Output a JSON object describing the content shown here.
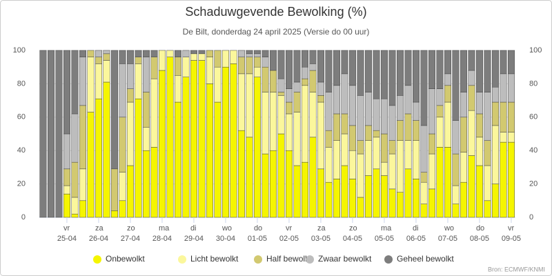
{
  "chart_data": {
    "type": "stacked_bar",
    "title": "Schaduwgevende Bewolking (%)",
    "subtitle": "De Bilt, donderdag 24 april 2025 (Versie do 00 uur)",
    "source": "Bron: ECMWF/KNMI",
    "categories": [
      null,
      null,
      null,
      "25-04",
      null,
      null,
      null,
      "26-04",
      null,
      null,
      null,
      "27-04",
      null,
      null,
      null,
      "28-04",
      null,
      null,
      null,
      "29-04",
      null,
      null,
      null,
      "30-04",
      null,
      null,
      null,
      "01-05",
      null,
      null,
      null,
      "02-05",
      null,
      null,
      null,
      "03-05",
      null,
      null,
      null,
      "04-05",
      null,
      null,
      null,
      "05-05",
      null,
      null,
      null,
      "06-05",
      null,
      null,
      null,
      "07-05",
      null,
      null,
      null,
      "08-05",
      null,
      null,
      null,
      "09-05"
    ],
    "weekdays": [
      null,
      null,
      null,
      "vr",
      null,
      null,
      null,
      "za",
      null,
      null,
      null,
      "zo",
      null,
      null,
      null,
      "ma",
      null,
      null,
      null,
      "di",
      null,
      null,
      null,
      "wo",
      null,
      null,
      null,
      "do",
      null,
      null,
      null,
      "vr",
      null,
      null,
      null,
      "za",
      null,
      null,
      null,
      "zo",
      null,
      null,
      null,
      "ma",
      null,
      null,
      null,
      "di",
      null,
      null,
      null,
      "wo",
      null,
      null,
      null,
      "do",
      null,
      null,
      null,
      "vr"
    ],
    "series": [
      {
        "name": "Onbewolkt",
        "color": "#f5f500",
        "values": [
          0,
          0,
          0,
          14,
          2,
          10,
          63,
          71,
          81,
          4,
          10,
          31,
          71,
          40,
          42,
          88,
          96,
          69,
          84,
          94,
          94,
          80,
          69,
          90,
          92,
          52,
          48,
          84,
          38,
          40,
          50,
          40,
          31,
          33,
          48,
          29,
          21,
          23,
          31,
          23,
          12,
          25,
          29,
          25,
          17,
          15,
          29,
          23,
          8,
          17,
          42,
          42,
          8,
          21,
          37,
          31,
          10,
          20,
          45,
          45
        ]
      },
      {
        "name": "Licht bewolkt",
        "color": "#fbf79c",
        "values": [
          0,
          0,
          0,
          5,
          10,
          19,
          33,
          21,
          13,
          0,
          17,
          38,
          21,
          14,
          41,
          12,
          4,
          16,
          12,
          4,
          4,
          16,
          21,
          10,
          8,
          34,
          38,
          6,
          37,
          35,
          23,
          22,
          32,
          46,
          27,
          40,
          21,
          23,
          19,
          17,
          26,
          21,
          19,
          8,
          21,
          31,
          17,
          23,
          13,
          21,
          18,
          27,
          11,
          18,
          27,
          17,
          21,
          35,
          6,
          6
        ]
      },
      {
        "name": "Half bewolkt",
        "color": "#d2c970",
        "values": [
          0,
          0,
          0,
          10,
          21,
          38,
          4,
          4,
          4,
          25,
          33,
          8,
          4,
          21,
          13,
          0,
          0,
          11,
          0,
          0,
          0,
          4,
          10,
          0,
          0,
          10,
          10,
          6,
          15,
          13,
          2,
          7,
          12,
          4,
          13,
          4,
          10,
          16,
          12,
          15,
          8,
          9,
          4,
          17,
          8,
          12,
          16,
          12,
          6,
          12,
          7,
          10,
          19,
          21,
          15,
          14,
          15,
          14,
          18,
          18
        ]
      },
      {
        "name": "Zwaar bewolkt",
        "color": "#bdbdbd",
        "values": [
          0,
          0,
          0,
          21,
          29,
          29,
          0,
          4,
          2,
          0,
          32,
          15,
          0,
          21,
          0,
          0,
          0,
          0,
          4,
          0,
          0,
          0,
          0,
          0,
          0,
          4,
          2,
          2,
          6,
          0,
          8,
          8,
          6,
          7,
          4,
          8,
          23,
          17,
          24,
          24,
          27,
          20,
          19,
          21,
          21,
          15,
          17,
          11,
          28,
          27,
          10,
          7,
          20,
          15,
          9,
          13,
          29,
          9,
          17,
          17
        ]
      },
      {
        "name": "Geheel bewolkt",
        "color": "#7d7d7d",
        "values": [
          100,
          100,
          100,
          50,
          38,
          4,
          0,
          0,
          0,
          71,
          8,
          8,
          4,
          4,
          4,
          0,
          0,
          4,
          0,
          2,
          2,
          0,
          0,
          0,
          0,
          0,
          2,
          2,
          4,
          12,
          17,
          23,
          19,
          10,
          8,
          19,
          25,
          21,
          14,
          21,
          27,
          25,
          29,
          29,
          33,
          27,
          21,
          31,
          45,
          23,
          23,
          14,
          42,
          25,
          12,
          25,
          25,
          22,
          14,
          14
        ]
      }
    ],
    "ylim": [
      0,
      100
    ],
    "yticks": [
      0,
      20,
      40,
      60,
      80,
      100
    ],
    "grid": true
  }
}
